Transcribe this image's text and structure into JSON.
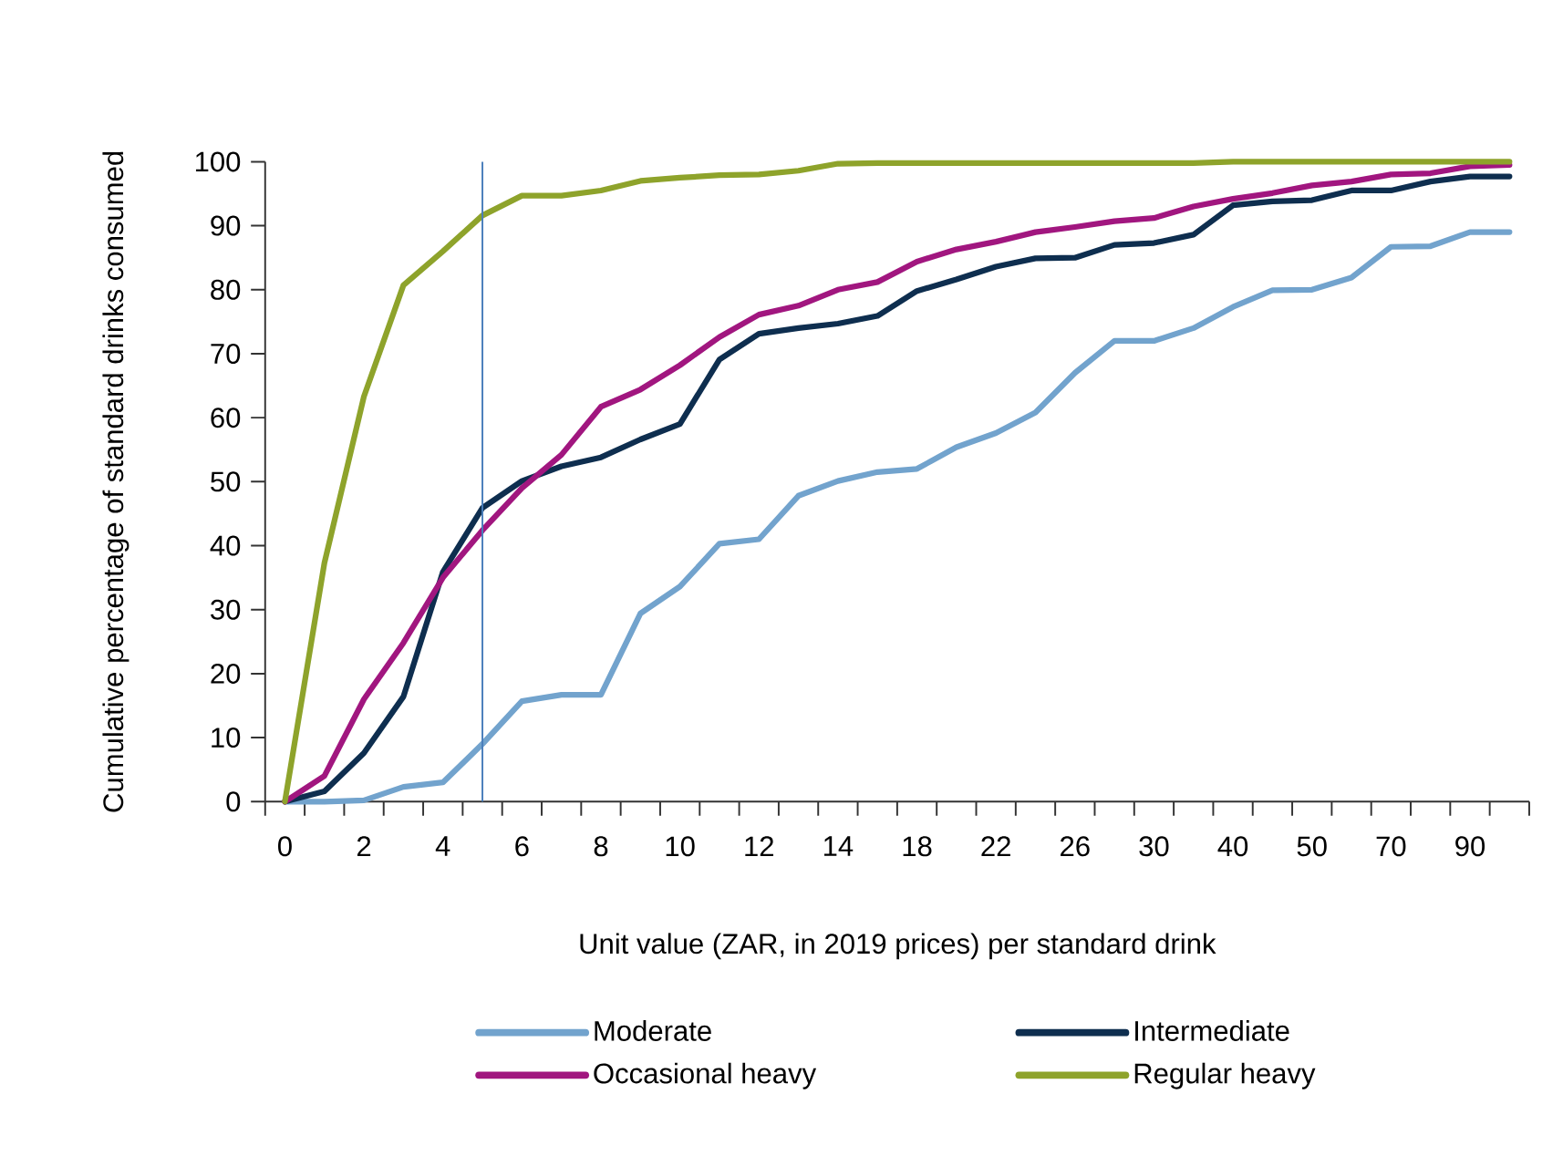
{
  "chart_data": {
    "type": "line",
    "xlabel": "Unit value (ZAR, in 2019 prices) per standard drink",
    "ylabel": "Cumulative percentage of standard drinks consumed",
    "categories": [
      "0",
      null,
      "2",
      null,
      "4",
      null,
      "6",
      null,
      "8",
      null,
      "10",
      null,
      "12",
      null,
      "14",
      null,
      "18",
      null,
      "22",
      null,
      "26",
      null,
      "30",
      null,
      "40",
      null,
      "50",
      null,
      "70",
      null,
      "90",
      null
    ],
    "ylim": [
      0,
      100
    ],
    "yticks": [
      0,
      10,
      20,
      30,
      40,
      50,
      60,
      70,
      80,
      90,
      100
    ],
    "legend": "bottom",
    "grid": false,
    "marker": "none",
    "line_style": "solid",
    "series": [
      {
        "name": "Moderate",
        "color": "#72a3cd",
        "values": [
          0,
          0,
          0.2,
          2.3,
          3,
          9,
          15.7,
          16.7,
          16.7,
          29.4,
          33.6,
          40.3,
          41,
          47.8,
          50.1,
          51.5,
          52,
          55.4,
          57.6,
          60.8,
          67,
          72,
          72,
          74,
          77.3,
          79.9,
          80,
          81.9,
          86.7,
          86.8,
          89,
          89
        ]
      },
      {
        "name": "Intermediate",
        "color": "#0e2e4f",
        "values": [
          0,
          1.6,
          7.6,
          16.4,
          35.9,
          45.9,
          50.1,
          52.4,
          53.8,
          56.6,
          59,
          69.1,
          73.1,
          74,
          74.7,
          75.9,
          79.8,
          81.6,
          83.6,
          84.9,
          85,
          87,
          87.3,
          88.6,
          93.2,
          93.8,
          94,
          95.5,
          95.5,
          96.9,
          97.7,
          97.7
        ]
      },
      {
        "name": "Occasional heavy",
        "color": "#a1167f",
        "values": [
          0,
          4,
          16,
          24.8,
          35,
          42.4,
          49,
          54.2,
          61.7,
          64.4,
          68.2,
          72.6,
          76.1,
          77.5,
          80,
          81.2,
          84.4,
          86.3,
          87.5,
          89,
          89.8,
          90.7,
          91.2,
          93,
          94.2,
          95.1,
          96.3,
          96.9,
          98,
          98.2,
          99.3,
          99.5
        ]
      },
      {
        "name": "Regular heavy",
        "color": "#8ea32b",
        "values": [
          0,
          37.3,
          63.3,
          80.7,
          86,
          91.6,
          94.7,
          94.7,
          95.5,
          97,
          97.5,
          97.9,
          98,
          98.6,
          99.7,
          99.8,
          99.8,
          99.8,
          99.8,
          99.8,
          99.8,
          99.8,
          99.8,
          99.8,
          100,
          100,
          100,
          100,
          100,
          100,
          100,
          100
        ]
      }
    ]
  }
}
